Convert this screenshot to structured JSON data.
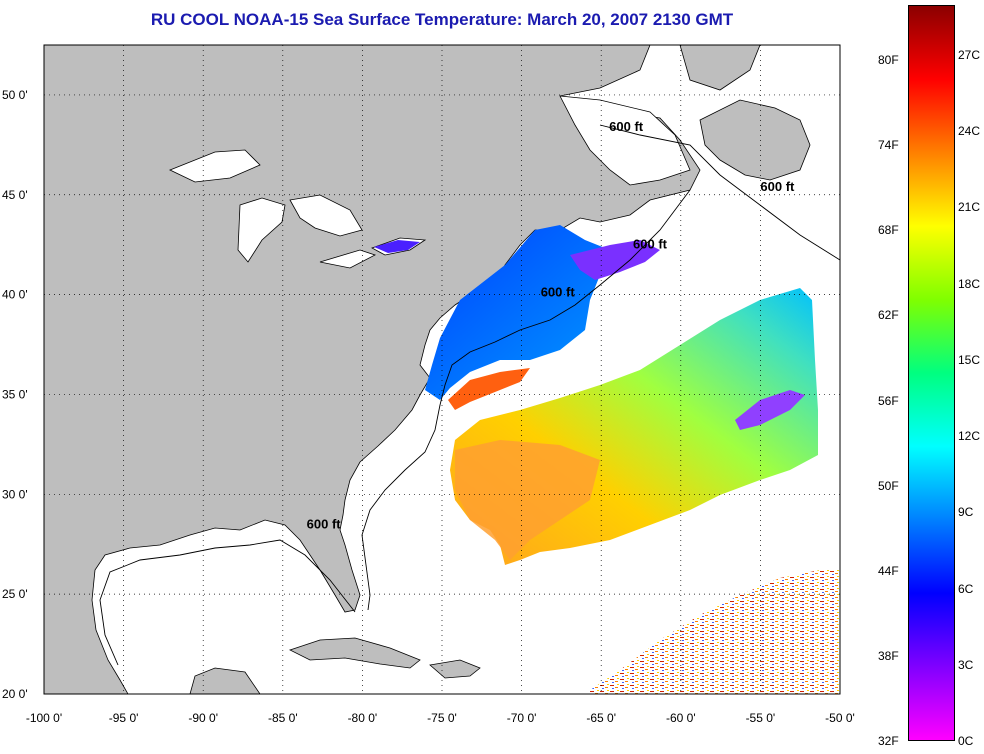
{
  "title": "RU COOL  NOAA-15  Sea Surface Temperature:  March 20, 2007 2130 GMT",
  "map": {
    "lon_range": [
      -100,
      -50
    ],
    "lat_range": [
      20,
      52.5
    ],
    "x_ticks": [
      "-100 0'",
      "-95 0'",
      "-90 0'",
      "-85 0'",
      "-80 0'",
      "-75 0'",
      "-70 0'",
      "-65 0'",
      "-60 0'",
      "-55 0'",
      "-50 0'"
    ],
    "y_ticks": [
      "50 0'",
      "45 0'",
      "40 0'",
      "35 0'",
      "30 0'",
      "25 0'",
      "20 0'"
    ],
    "grid": "dotted",
    "land_color": "#bebebe",
    "contour_labels": [
      {
        "text": "600 ft",
        "lon": -64.5,
        "lat": 48.2
      },
      {
        "text": "600 ft",
        "lon": -55.0,
        "lat": 45.2
      },
      {
        "text": "600 ft",
        "lon": -63.0,
        "lat": 42.3
      },
      {
        "text": "600 ft",
        "lon": -68.8,
        "lat": 39.9
      },
      {
        "text": "600 ft",
        "lon": -83.5,
        "lat": 28.3
      }
    ]
  },
  "colorbar": {
    "fahrenheit_labels": [
      "80F",
      "74F",
      "68F",
      "62F",
      "56F",
      "50F",
      "44F",
      "38F",
      "32F"
    ],
    "celsius_labels": [
      "27C",
      "24C",
      "21C",
      "18C",
      "15C",
      "12C",
      "9C",
      "6C",
      "3C",
      "0C"
    ],
    "colors_top_to_bottom": [
      "#8b0000",
      "#ff0000",
      "#ff8000",
      "#ffff00",
      "#80ff00",
      "#00ff80",
      "#00ffff",
      "#0080ff",
      "#0000ff",
      "#8000ff",
      "#ff00ff"
    ]
  }
}
